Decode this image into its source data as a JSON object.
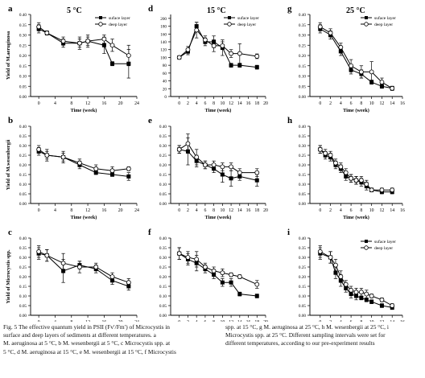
{
  "legend_labels": {
    "surface": "suface layer",
    "deep": "deep layer"
  },
  "ylabel_rows": [
    "Yield of M.aeruginosa",
    "Yield of M.wesenbergii",
    "Yield of Microcystis spp."
  ],
  "chart_data": [
    {
      "panel": "a",
      "title": "5 °C",
      "type": "line",
      "xlabel": "Time (week)",
      "ylabel": "Yield of M.aeruginosa",
      "xlim": [
        -2,
        24
      ],
      "xticks": [
        0,
        4,
        8,
        12,
        16,
        20,
        24
      ],
      "ylim": [
        0,
        0.4
      ],
      "yticks": [
        0.0,
        0.05,
        0.1,
        0.15,
        0.2,
        0.25,
        0.3,
        0.35,
        0.4
      ],
      "legend": "top-right",
      "series": [
        {
          "name": "suface layer",
          "x": [
            0,
            2,
            6,
            10,
            12,
            16,
            18,
            22
          ],
          "y": [
            0.33,
            0.31,
            0.26,
            0.26,
            0.27,
            0.25,
            0.16,
            0.16
          ],
          "err": [
            0.02,
            0.01,
            0.02,
            0.03,
            0.02,
            0.04,
            0.01,
            0.07
          ]
        },
        {
          "name": "deep layer",
          "x": [
            0,
            2,
            6,
            10,
            12,
            16,
            18,
            22
          ],
          "y": [
            0.34,
            0.31,
            0.27,
            0.26,
            0.27,
            0.28,
            0.25,
            0.2
          ],
          "err": [
            0.02,
            0.01,
            0.02,
            0.02,
            0.03,
            0.02,
            0.03,
            0.05
          ]
        }
      ]
    },
    {
      "panel": "d",
      "title": "15 °C",
      "type": "line",
      "xlabel": "Time (week)",
      "ylabel": "",
      "xlim": [
        -2,
        20
      ],
      "xticks": [
        0,
        2,
        4,
        6,
        8,
        10,
        12,
        14,
        16,
        18,
        20
      ],
      "ylim": [
        0,
        210
      ],
      "yticks": [
        0,
        20,
        40,
        60,
        80,
        100,
        120,
        140,
        160,
        180,
        200
      ],
      "legend": "top-right",
      "series": [
        {
          "name": "suface layer",
          "x": [
            0,
            2,
            4,
            6,
            8,
            10,
            12,
            14,
            18
          ],
          "y": [
            100,
            115,
            180,
            140,
            140,
            125,
            80,
            80,
            75
          ],
          "err": [
            3,
            8,
            10,
            10,
            15,
            20,
            5,
            5,
            5
          ]
        },
        {
          "name": "deep layer",
          "x": [
            0,
            2,
            4,
            6,
            8,
            10,
            12,
            14,
            18
          ],
          "y": [
            100,
            120,
            170,
            145,
            130,
            130,
            110,
            110,
            103
          ],
          "err": [
            3,
            8,
            20,
            10,
            15,
            10,
            10,
            25,
            6
          ]
        }
      ]
    },
    {
      "panel": "g",
      "title": "25 °C",
      "type": "line",
      "xlabel": "Time (week)",
      "ylabel": "",
      "xlim": [
        -2,
        16
      ],
      "xticks": [
        0,
        2,
        4,
        6,
        8,
        10,
        12,
        14,
        16
      ],
      "ylim": [
        0,
        0.4
      ],
      "yticks": [
        0.0,
        0.05,
        0.1,
        0.15,
        0.2,
        0.25,
        0.3,
        0.35,
        0.4
      ],
      "legend": "top-right",
      "series": [
        {
          "name": "suface layer",
          "x": [
            0,
            2,
            4,
            6,
            8,
            10,
            12,
            14
          ],
          "y": [
            0.33,
            0.3,
            0.22,
            0.13,
            0.11,
            0.07,
            0.05,
            0.04
          ],
          "err": [
            0.02,
            0.02,
            0.02,
            0.02,
            0.02,
            0.01,
            0.01,
            0.01
          ]
        },
        {
          "name": "deep layer",
          "x": [
            0,
            2,
            4,
            6,
            8,
            10,
            12,
            14
          ],
          "y": [
            0.34,
            0.31,
            0.24,
            0.15,
            0.12,
            0.12,
            0.07,
            0.04
          ],
          "err": [
            0.02,
            0.02,
            0.02,
            0.03,
            0.03,
            0.05,
            0.02,
            0.01
          ]
        }
      ]
    },
    {
      "panel": "b",
      "title": "",
      "type": "line",
      "xlabel": "Time (week)",
      "ylabel": "Yield of M.wesenbergii",
      "xlim": [
        -2,
        24
      ],
      "xticks": [
        0,
        4,
        8,
        12,
        16,
        20,
        24
      ],
      "ylim": [
        0,
        0.4
      ],
      "yticks": [
        0.0,
        0.05,
        0.1,
        0.15,
        0.2,
        0.25,
        0.3,
        0.35,
        0.4
      ],
      "series": [
        {
          "name": "suface layer",
          "x": [
            0,
            2,
            6,
            10,
            14,
            18,
            22
          ],
          "y": [
            0.27,
            0.25,
            0.24,
            0.2,
            0.16,
            0.15,
            0.14
          ],
          "err": [
            0.02,
            0.03,
            0.02,
            0.02,
            0.01,
            0.01,
            0.02
          ]
        },
        {
          "name": "deep layer",
          "x": [
            0,
            2,
            6,
            10,
            14,
            18,
            22
          ],
          "y": [
            0.28,
            0.25,
            0.24,
            0.21,
            0.18,
            0.17,
            0.18
          ],
          "err": [
            0.02,
            0.02,
            0.03,
            0.02,
            0.02,
            0.02,
            0.01
          ]
        }
      ]
    },
    {
      "panel": "e",
      "title": "",
      "type": "line",
      "xlabel": "Time (week)",
      "ylabel": "",
      "xlim": [
        -2,
        20
      ],
      "xticks": [
        0,
        2,
        4,
        6,
        8,
        10,
        12,
        14,
        16,
        18,
        20
      ],
      "ylim": [
        0,
        0.4
      ],
      "yticks": [
        0.0,
        0.05,
        0.1,
        0.15,
        0.2,
        0.25,
        0.3,
        0.35,
        0.4
      ],
      "series": [
        {
          "name": "suface layer",
          "x": [
            0,
            2,
            4,
            6,
            8,
            10,
            12,
            14,
            18
          ],
          "y": [
            0.28,
            0.27,
            0.22,
            0.2,
            0.18,
            0.15,
            0.13,
            0.14,
            0.12
          ],
          "err": [
            0.02,
            0.07,
            0.03,
            0.02,
            0.02,
            0.04,
            0.04,
            0.02,
            0.03
          ]
        },
        {
          "name": "deep layer",
          "x": [
            0,
            2,
            4,
            6,
            8,
            10,
            12,
            14,
            18
          ],
          "y": [
            0.28,
            0.31,
            0.24,
            0.2,
            0.2,
            0.19,
            0.19,
            0.16,
            0.16
          ],
          "err": [
            0.02,
            0.05,
            0.04,
            0.02,
            0.02,
            0.02,
            0.02,
            0.02,
            0.02
          ]
        }
      ]
    },
    {
      "panel": "h",
      "title": "",
      "type": "line",
      "xlabel": "Time (week)",
      "ylabel": "",
      "xlim": [
        -2,
        16
      ],
      "xticks": [
        0,
        2,
        4,
        6,
        8,
        10,
        12,
        14,
        16
      ],
      "ylim": [
        0,
        0.4
      ],
      "yticks": [
        0.0,
        0.05,
        0.1,
        0.15,
        0.2,
        0.25,
        0.3,
        0.35,
        0.4
      ],
      "series": [
        {
          "name": "suface layer",
          "x": [
            0,
            1,
            2,
            3,
            4,
            5,
            6,
            7,
            8,
            9,
            10,
            12,
            14
          ],
          "y": [
            0.28,
            0.25,
            0.24,
            0.2,
            0.18,
            0.14,
            0.13,
            0.12,
            0.11,
            0.09,
            0.07,
            0.06,
            0.06
          ],
          "err": [
            0.02,
            0.02,
            0.02,
            0.02,
            0.02,
            0.02,
            0.02,
            0.02,
            0.02,
            0.02,
            0.01,
            0.01,
            0.01
          ]
        },
        {
          "name": "deep layer",
          "x": [
            0,
            1,
            2,
            3,
            4,
            5,
            6,
            7,
            8,
            9,
            10,
            12,
            14
          ],
          "y": [
            0.28,
            0.26,
            0.25,
            0.21,
            0.19,
            0.16,
            0.13,
            0.12,
            0.12,
            0.1,
            0.07,
            0.07,
            0.07
          ],
          "err": [
            0.02,
            0.02,
            0.02,
            0.02,
            0.02,
            0.02,
            0.02,
            0.02,
            0.02,
            0.02,
            0.01,
            0.01,
            0.01
          ]
        }
      ]
    },
    {
      "panel": "c",
      "title": "",
      "type": "line",
      "xlabel": "Time (week)",
      "ylabel": "Yield of Microcystis spp.",
      "xlim": [
        -2,
        24
      ],
      "xticks": [
        0,
        4,
        8,
        12,
        16,
        20,
        24
      ],
      "ylim": [
        0,
        0.4
      ],
      "yticks": [
        0.0,
        0.05,
        0.1,
        0.15,
        0.2,
        0.25,
        0.3,
        0.35,
        0.4
      ],
      "series": [
        {
          "name": "suface layer",
          "x": [
            0,
            2,
            6,
            10,
            14,
            18,
            22
          ],
          "y": [
            0.32,
            0.31,
            0.23,
            0.26,
            0.24,
            0.18,
            0.15
          ],
          "err": [
            0.03,
            0.03,
            0.06,
            0.02,
            0.02,
            0.02,
            0.02
          ]
        },
        {
          "name": "deep layer",
          "x": [
            0,
            2,
            6,
            10,
            14,
            18,
            22
          ],
          "y": [
            0.33,
            0.31,
            0.27,
            0.25,
            0.25,
            0.2,
            0.17
          ],
          "err": [
            0.03,
            0.03,
            0.05,
            0.03,
            0.02,
            0.02,
            0.02
          ]
        }
      ]
    },
    {
      "panel": "f",
      "title": "",
      "type": "line",
      "xlabel": "Time (week)",
      "ylabel": "",
      "xlim": [
        -2,
        20
      ],
      "xticks": [
        0,
        2,
        4,
        6,
        8,
        10,
        12,
        14,
        16,
        18,
        20
      ],
      "ylim": [
        0,
        0.4
      ],
      "yticks": [
        0.0,
        0.05,
        0.1,
        0.15,
        0.2,
        0.25,
        0.3,
        0.35,
        0.4
      ],
      "series": [
        {
          "name": "suface layer",
          "x": [
            0,
            2,
            4,
            6,
            8,
            10,
            12,
            14,
            18
          ],
          "y": [
            0.32,
            0.29,
            0.27,
            0.24,
            0.21,
            0.17,
            0.17,
            0.11,
            0.1
          ],
          "err": [
            0.03,
            0.03,
            0.04,
            0.02,
            0.02,
            0.02,
            0.02,
            0.01,
            0.01
          ]
        },
        {
          "name": "deep layer",
          "x": [
            0,
            2,
            4,
            6,
            8,
            10,
            12,
            14,
            18
          ],
          "y": [
            0.32,
            0.3,
            0.29,
            0.25,
            0.23,
            0.22,
            0.21,
            0.2,
            0.16
          ],
          "err": [
            0.03,
            0.03,
            0.04,
            0.02,
            0.02,
            0.02,
            0.01,
            0.01,
            0.02
          ]
        }
      ]
    },
    {
      "panel": "i",
      "title": "",
      "type": "line",
      "xlabel": "Time (week)",
      "ylabel": "",
      "xlim": [
        -2,
        16
      ],
      "xticks": [
        0,
        2,
        4,
        6,
        8,
        10,
        12,
        14,
        16
      ],
      "ylim": [
        0,
        0.4
      ],
      "yticks": [
        0.0,
        0.05,
        0.1,
        0.15,
        0.2,
        0.25,
        0.3,
        0.35,
        0.4
      ],
      "legend": "top-right",
      "series": [
        {
          "name": "suface layer",
          "x": [
            0,
            2,
            3,
            4,
            5,
            6,
            7,
            8,
            9,
            10,
            12,
            14
          ],
          "y": [
            0.32,
            0.3,
            0.22,
            0.18,
            0.14,
            0.11,
            0.1,
            0.09,
            0.08,
            0.07,
            0.05,
            0.04
          ],
          "err": [
            0.03,
            0.03,
            0.03,
            0.03,
            0.02,
            0.02,
            0.02,
            0.01,
            0.01,
            0.01,
            0.01,
            0.01
          ]
        },
        {
          "name": "deep layer",
          "x": [
            0,
            2,
            3,
            4,
            5,
            6,
            7,
            8,
            9,
            10,
            12,
            14
          ],
          "y": [
            0.33,
            0.3,
            0.26,
            0.2,
            0.16,
            0.13,
            0.12,
            0.12,
            0.11,
            0.1,
            0.08,
            0.05
          ],
          "err": [
            0.03,
            0.03,
            0.03,
            0.03,
            0.02,
            0.02,
            0.02,
            0.02,
            0.02,
            0.01,
            0.01,
            0.01
          ]
        }
      ]
    }
  ],
  "caption_lines": {
    "left": [
      "Fig. 5  The effective quantum yield in PSII (Fv′/Fm′) of Microcystis in",
      "surface and deep layers of sediments at different temperatures. a",
      "M. aeruginosa at 5 °C, b M. wesenbergii at 5 °C, c Microcystis spp. at",
      "5 °C, d M. aeruginosa at 15 °C, e M. wesenbergii at 15 °C, f Microcystis"
    ],
    "right": [
      "spp. at 15 °C, g M. aeruginosa at 25 °C, h M. wesenbergii at 25 °C, i",
      "Microcystis spp. at 25 °C. Different sampling intervals were set for",
      "different temperatures, according to our pre-experiment results"
    ]
  }
}
